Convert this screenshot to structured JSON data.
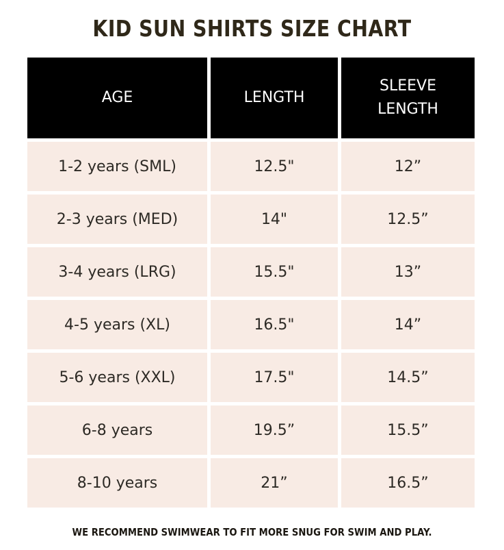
{
  "title": "KID SUN SHIRTS SIZE CHART",
  "table": {
    "headers": [
      "AGE",
      "LENGTH",
      "SLEEVE LENGTH"
    ],
    "rows": [
      [
        "1-2 years (SML)",
        "12.5\"",
        "12”"
      ],
      [
        "2-3 years (MED)",
        "14\"",
        "12.5”"
      ],
      [
        "3-4 years (LRG)",
        "15.5\"",
        "13”"
      ],
      [
        "4-5 years (XL)",
        "16.5\"",
        "14”"
      ],
      [
        "5-6 years (XXL)",
        "17.5\"",
        "14.5”"
      ],
      [
        "6-8 years",
        "19.5”",
        "15.5”"
      ],
      [
        "8-10 years",
        "21”",
        "16.5”"
      ]
    ]
  },
  "footnote": "WE RECOMMEND SWIMWEAR TO FIT MORE SNUG FOR SWIM AND PLAY.",
  "colors": {
    "header_bg": "#000000",
    "header_text": "#ffffff",
    "cell_bg": "#f8ebe4",
    "title_text": "#2f2819"
  }
}
